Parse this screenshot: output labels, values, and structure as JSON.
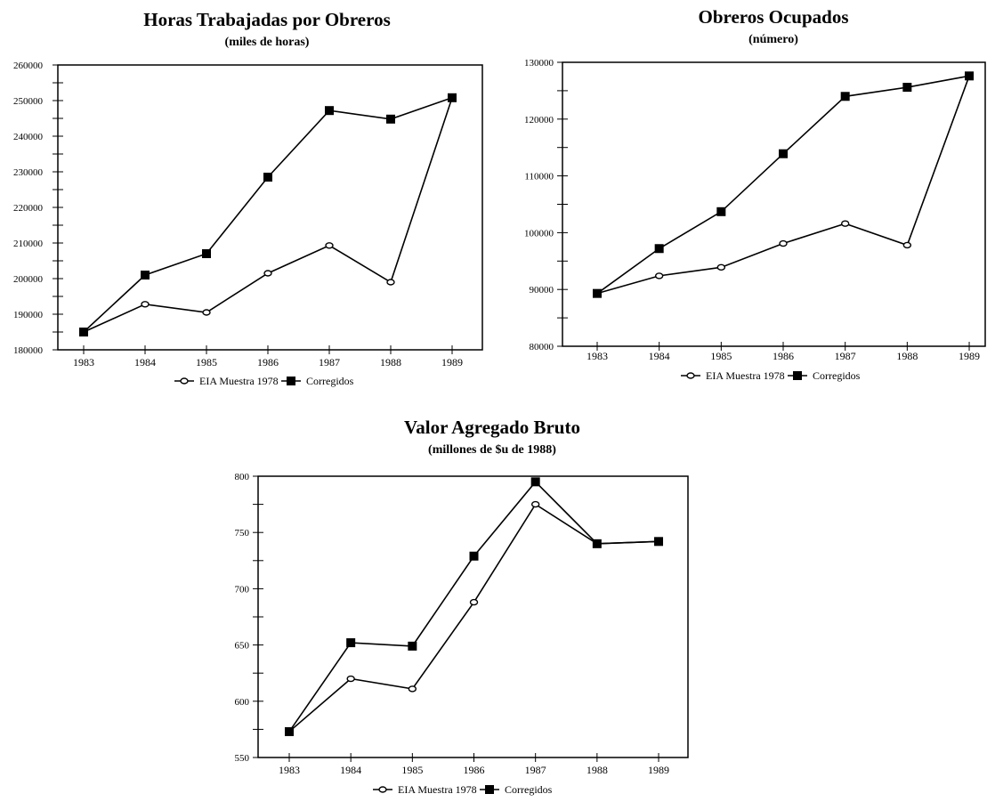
{
  "chart_data": [
    {
      "type": "line",
      "title": "Horas Trabajadas por Obreros",
      "subtitle": "(miles de horas)",
      "categories": [
        "1983",
        "1984",
        "1985",
        "1986",
        "1987",
        "1988",
        "1989"
      ],
      "ylim": [
        180000,
        260000
      ],
      "yticks": [
        180000,
        190000,
        200000,
        210000,
        220000,
        230000,
        240000,
        250000,
        260000
      ],
      "series": [
        {
          "name": "EIA Muestra 1978",
          "marker": "open-circle",
          "values": [
            185000,
            192800,
            190500,
            201500,
            209300,
            199000,
            250800
          ]
        },
        {
          "name": "Corregidos",
          "marker": "filled-square",
          "values": [
            185000,
            201000,
            207000,
            228500,
            247200,
            244800,
            250800
          ]
        }
      ]
    },
    {
      "type": "line",
      "title": "Obreros Ocupados",
      "subtitle": "(número)",
      "categories": [
        "1983",
        "1984",
        "1985",
        "1986",
        "1987",
        "1988",
        "1989"
      ],
      "ylim": [
        80000,
        130000
      ],
      "yticks": [
        80000,
        90000,
        100000,
        110000,
        120000,
        130000
      ],
      "series": [
        {
          "name": "EIA Muestra 1978",
          "marker": "open-circle",
          "values": [
            89300,
            92400,
            93900,
            98100,
            101600,
            97800,
            127600
          ]
        },
        {
          "name": "Corregidos",
          "marker": "filled-square",
          "values": [
            89300,
            97200,
            103700,
            113900,
            124000,
            125600,
            127600
          ]
        }
      ]
    },
    {
      "type": "line",
      "title": "Valor Agregado Bruto",
      "subtitle": "(millones de $u de 1988)",
      "categories": [
        "1983",
        "1984",
        "1985",
        "1986",
        "1987",
        "1988",
        "1989"
      ],
      "ylim": [
        550,
        800
      ],
      "yticks": [
        550,
        600,
        650,
        700,
        750,
        800
      ],
      "series": [
        {
          "name": "EIA Muestra 1978",
          "marker": "open-circle",
          "values": [
            573,
            620,
            611,
            688,
            775,
            740,
            742
          ]
        },
        {
          "name": "Corregidos",
          "marker": "filled-square",
          "values": [
            573,
            652,
            649,
            729,
            795,
            740,
            742
          ]
        }
      ]
    }
  ]
}
